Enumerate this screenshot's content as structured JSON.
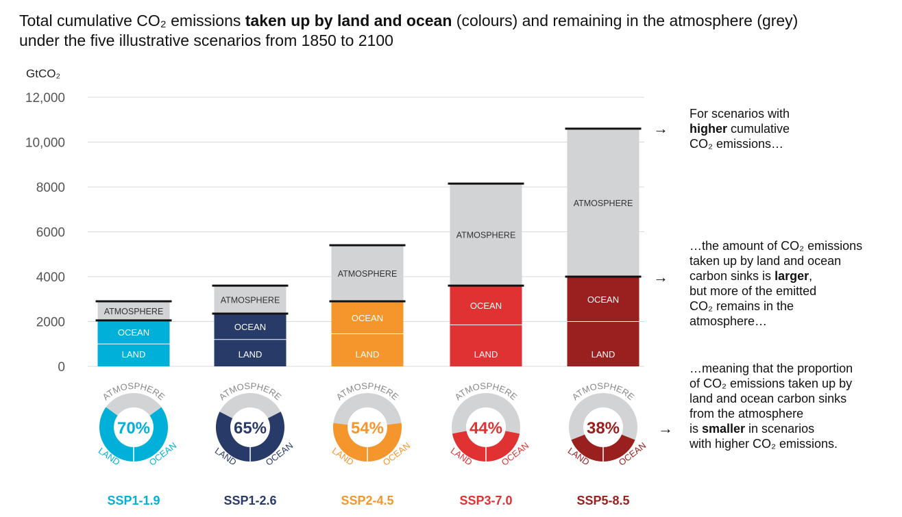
{
  "title": {
    "part1": "Total cumulative CO₂ emissions ",
    "bold": "taken up by land and ocean",
    "part2": " (colours) and remaining in the atmosphere (grey)",
    "line2": "under the five illustrative scenarios from 1850 to 2100"
  },
  "notes": {
    "n1_line1": "For scenarios with",
    "n1_bold": "higher",
    "n1_rest": " cumulative",
    "n1_line3": "CO₂ emissions…",
    "n2_line1": "…the amount of CO₂ emissions",
    "n2_line2": "taken up by land and ocean",
    "n2_line3a": "carbon sinks is ",
    "n2_line3b": "larger",
    "n2_line3c": ",",
    "n2_line4": "but more of the emitted",
    "n2_line5": "CO₂ remains in the",
    "n2_line6": "atmosphere…",
    "n3_line1": "…meaning that the proportion",
    "n3_line2": "of CO₂ emissions taken up by",
    "n3_line3": "land and ocean carbon sinks",
    "n3_line4": "from the atmosphere",
    "n3_line5a": "is ",
    "n3_line5b": "smaller",
    "n3_line5c": " in scenarios",
    "n3_line6": "with higher CO₂ emissions.",
    "arrow": "→"
  },
  "chart_data": {
    "type": "bar",
    "stacked": true,
    "ylabel": "GtCO₂",
    "ylim": [
      0,
      12000
    ],
    "yticks": [
      {
        "value": 0,
        "label": "0"
      },
      {
        "value": 2000,
        "label": "2000"
      },
      {
        "value": 4000,
        "label": "4000"
      },
      {
        "value": 6000,
        "label": "6000"
      },
      {
        "value": 8000,
        "label": "8000"
      },
      {
        "value": 10000,
        "label": "10,000"
      },
      {
        "value": 12000,
        "label": "12,000"
      }
    ],
    "grid": true,
    "segment_labels": {
      "land": "LAND",
      "ocean": "OCEAN",
      "atmosphere": "ATMOSPHERE"
    },
    "categories": [
      "SSP1-1.9",
      "SSP1-2.6",
      "SSP2-4.5",
      "SSP3-7.0",
      "SSP5-8.5"
    ],
    "series": [
      {
        "name": "LAND",
        "values": [
          1000,
          1200,
          1450,
          1850,
          2000
        ]
      },
      {
        "name": "OCEAN",
        "values": [
          1050,
          1150,
          1450,
          1750,
          2000
        ]
      },
      {
        "name": "ATMOSPHERE",
        "values": [
          850,
          1250,
          2500,
          4550,
          6600
        ]
      }
    ],
    "uptake_percent": [
      "70%",
      "65%",
      "54%",
      "44%",
      "38%"
    ],
    "colors": [
      "#00b0d8",
      "#283a68",
      "#f5962d",
      "#e03232",
      "#99201f"
    ],
    "atmosphere_color": "#d2d3d5"
  }
}
